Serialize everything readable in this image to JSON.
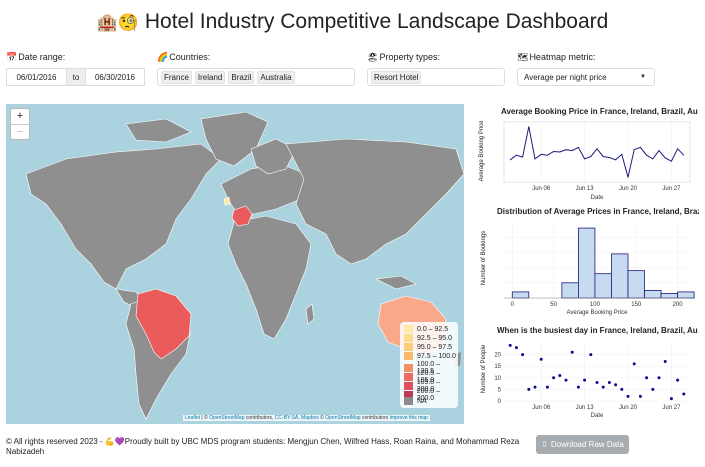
{
  "header": {
    "emoji_hotel": "🏨",
    "emoji_face": "🧐",
    "title": "Hotel Industry Competitive Landscape Dashboard"
  },
  "controls": {
    "date_label": "Date range:",
    "date_icon": "📅",
    "date_start": "06/01/2016",
    "date_to": "to",
    "date_end": "06/30/2016",
    "countries_label": "Countries:",
    "countries_icon": "🌈",
    "countries": [
      "France",
      "Ireland",
      "Brazil",
      "Australia"
    ],
    "property_label": "Property types:",
    "property_icon": "🏖",
    "property_value": "Resort Hotel",
    "metric_label": "Heatmap metric:",
    "metric_icon": "🗺",
    "metric_value": "Average per night price"
  },
  "map": {
    "zoom_in": "+",
    "zoom_out": "−",
    "legend": [
      {
        "label": "0.0 – 92.5",
        "color": "#fde9a8"
      },
      {
        "label": "92.5 – 95.0",
        "color": "#fddc8e"
      },
      {
        "label": "95.0 – 97.5",
        "color": "#fccc78"
      },
      {
        "label": "97.5 – 100.0",
        "color": "#f9b86a"
      },
      {
        "label": "100.0 – 120.5",
        "color": "#f29066"
      },
      {
        "label": "120.5 – 105.0",
        "color": "#ea6b62"
      },
      {
        "label": "105.0 – 200.0",
        "color": "#e04f5b"
      },
      {
        "label": "200.0 – 300.0",
        "color": "#c0395a"
      },
      {
        "label": "NA",
        "color": "#8c8c8c"
      }
    ],
    "attribution": {
      "leaflet": "Leaflet",
      "sep": " | © ",
      "osm": "OpenStreetMap",
      "contrib": " contributors, ",
      "ccbysa": "CC-BY-SA",
      "comma": ", ",
      "mapbox": "Mapbox",
      "copy": " © ",
      "osm2": "OpenStreetMap",
      "contrib2": " contributors ",
      "improve": "Improve this map"
    }
  },
  "chart_data": [
    {
      "type": "line",
      "title": "Average Booking Price in France, Ireland, Brazil, Au",
      "xlabel": "Date",
      "ylabel": "Average Booking Price",
      "x_ticks": [
        "Jun 06",
        "Jun 13",
        "Jun 20",
        "Jun 27"
      ],
      "x": [
        1,
        2,
        3,
        4,
        5,
        6,
        7,
        8,
        9,
        10,
        11,
        12,
        13,
        14,
        15,
        16,
        17,
        18,
        19,
        20,
        21,
        22,
        23,
        24,
        25,
        26,
        27,
        28,
        29
      ],
      "values": [
        98,
        108,
        104,
        170,
        100,
        110,
        108,
        116,
        115,
        120,
        118,
        125,
        100,
        105,
        122,
        105,
        103,
        98,
        110,
        60,
        120,
        125,
        108,
        100,
        118,
        102,
        95,
        122,
        108
      ],
      "color": "#1a1a7e"
    },
    {
      "type": "bar",
      "title": "Distribution of Average Prices in France, Ireland, Brazil",
      "xlabel": "Average Booking Price",
      "ylabel": "Number of Bookings",
      "x_ticks": [
        "0",
        "50",
        "100",
        "150",
        "200"
      ],
      "bins": [
        [
          0,
          20
        ],
        [
          60,
          80
        ],
        [
          80,
          100
        ],
        [
          100,
          120
        ],
        [
          120,
          140
        ],
        [
          140,
          160
        ],
        [
          160,
          180
        ],
        [
          180,
          200
        ],
        [
          200,
          220
        ]
      ],
      "values": [
        4,
        10,
        46,
        16,
        29,
        18,
        5,
        3,
        4
      ],
      "ylim": [
        0,
        50
      ],
      "color": "#c6dbef"
    },
    {
      "type": "scatter",
      "title": "When is the busiest day in France, Ireland, Brazil, Au",
      "xlabel": "Date",
      "ylabel": "Number of People",
      "y_ticks": [
        "0",
        "5",
        "10",
        "15",
        "20"
      ],
      "x_ticks": [
        "Jun 06",
        "Jun 13",
        "Jun 20",
        "Jun 27"
      ],
      "x": [
        1,
        2,
        3,
        4,
        5,
        6,
        7,
        8,
        9,
        10,
        11,
        12,
        13,
        14,
        15,
        16,
        17,
        18,
        19,
        20,
        21,
        22,
        23,
        24,
        25,
        26,
        27,
        28,
        29
      ],
      "values": [
        24,
        23,
        20,
        5,
        6,
        18,
        6,
        10,
        11,
        9,
        21,
        6,
        9,
        20,
        8,
        6,
        8,
        7,
        5,
        2,
        16,
        2,
        10,
        5,
        10,
        17,
        1,
        9,
        3
      ],
      "ylim": [
        0,
        25
      ],
      "color": "#0b0b8f"
    }
  ],
  "footer": {
    "text": "© All rights reserved 2023 - 💪💜Proudly built by UBC MDS program students: Mengjun Chen, Wilfred Hass, Roan Raina, and Mohammad Reza Nabizadeh",
    "download": "Download Raw Data",
    "download_icon": "⇩"
  }
}
